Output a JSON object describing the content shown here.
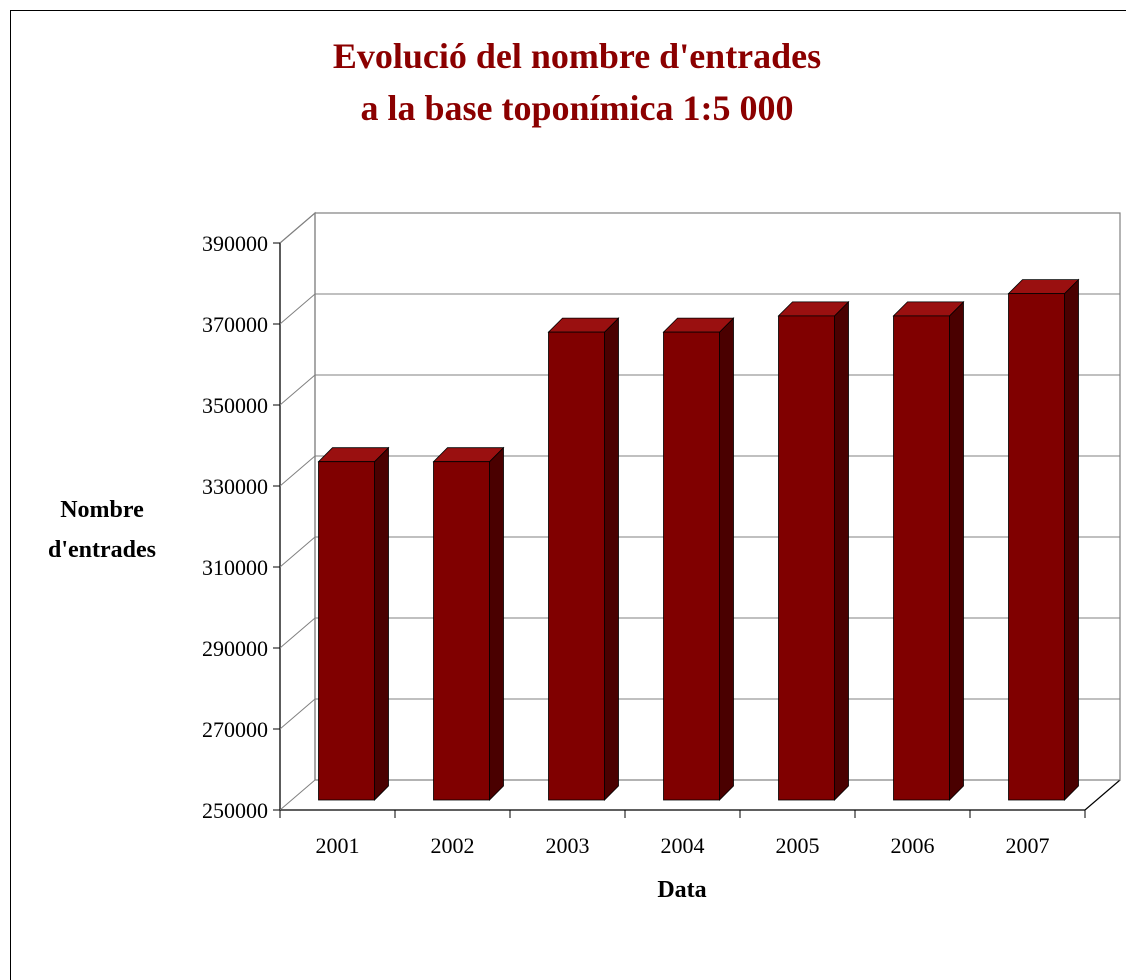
{
  "chart_data": {
    "type": "bar",
    "title_lines": [
      "Evolució del nombre d'entrades",
      "a la base toponímica 1:5 000"
    ],
    "xlabel": "Data",
    "ylabel_lines": [
      "Nombre",
      "d'entrades"
    ],
    "categories": [
      "2001",
      "2002",
      "2003",
      "2004",
      "2005",
      "2006",
      "2007"
    ],
    "values": [
      336000,
      336000,
      368000,
      368000,
      372000,
      372000,
      377500
    ],
    "ylim": [
      250000,
      390000
    ],
    "yticks": [
      "250000",
      "270000",
      "290000",
      "310000",
      "330000",
      "350000",
      "370000",
      "390000"
    ],
    "grid": true,
    "legend": false,
    "colors": {
      "bar_front": "#800000",
      "bar_side": "#4a0000",
      "bar_top": "#9a1010",
      "title": "#8b0000",
      "grid": "#808080"
    }
  }
}
